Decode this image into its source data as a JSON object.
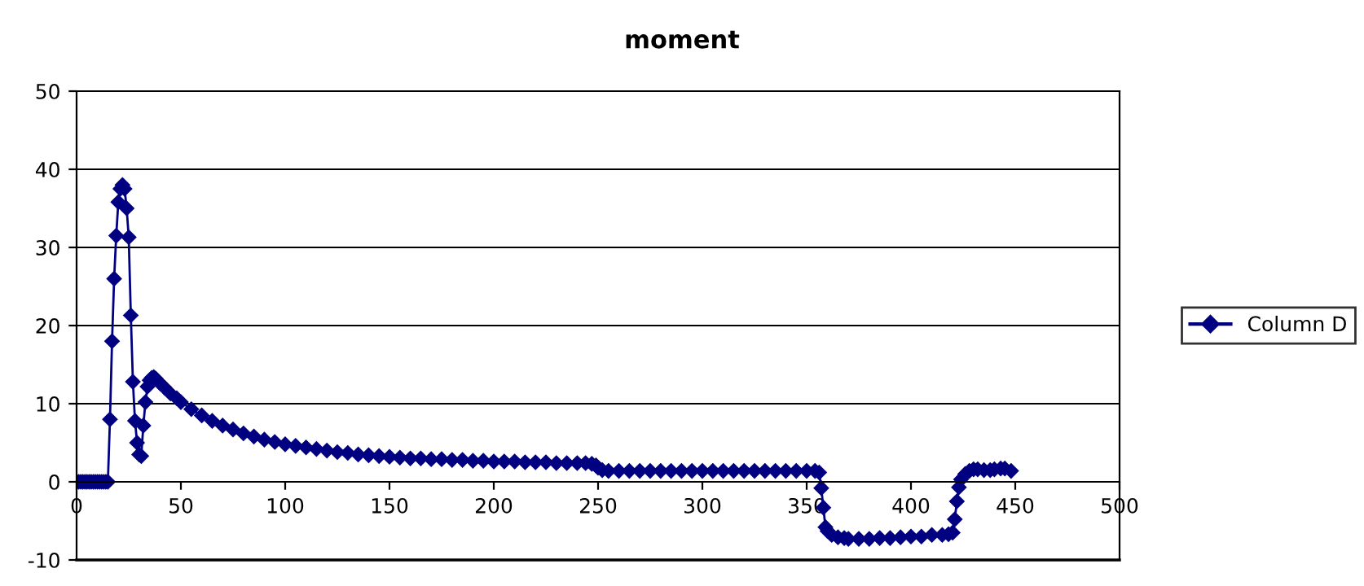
{
  "chart_data": {
    "type": "line",
    "title": "moment",
    "series": [
      {
        "name": "Column D",
        "color": "#000080",
        "x": [
          0,
          1,
          2,
          3,
          4,
          5,
          6,
          7,
          8,
          9,
          10,
          11,
          12,
          13,
          14,
          15,
          16,
          17,
          18,
          19,
          20,
          21,
          22,
          23,
          24,
          25,
          26,
          27,
          28,
          29,
          30,
          31,
          32,
          33,
          34,
          35,
          36,
          37,
          38,
          40,
          42,
          45,
          48,
          50,
          55,
          60,
          65,
          70,
          75,
          80,
          85,
          90,
          95,
          100,
          105,
          110,
          115,
          120,
          125,
          130,
          135,
          140,
          145,
          150,
          155,
          160,
          165,
          170,
          175,
          180,
          185,
          190,
          195,
          200,
          205,
          210,
          215,
          220,
          225,
          230,
          235,
          240,
          244,
          247,
          249,
          250,
          252,
          255,
          260,
          265,
          270,
          275,
          280,
          285,
          290,
          295,
          300,
          305,
          310,
          315,
          320,
          325,
          330,
          335,
          340,
          345,
          350,
          354,
          356,
          357,
          358,
          359,
          360,
          362,
          365,
          368,
          370,
          375,
          380,
          385,
          390,
          395,
          400,
          405,
          410,
          415,
          418,
          420,
          421,
          422,
          423,
          424,
          426,
          428,
          430,
          432,
          435,
          438,
          440,
          443,
          445,
          448
        ],
        "values": [
          0,
          0,
          0,
          0,
          0,
          0,
          0,
          0,
          0,
          0,
          0,
          0,
          0,
          0,
          0,
          0,
          8,
          18,
          26,
          31.5,
          35.8,
          37.5,
          38,
          37.5,
          35,
          31.3,
          21.3,
          12.8,
          7.8,
          5,
          3.5,
          3.3,
          7.2,
          10.2,
          12.2,
          13,
          13.3,
          13.4,
          13.2,
          12.6,
          12.1,
          11.3,
          10.7,
          10.2,
          9.3,
          8.5,
          7.8,
          7.2,
          6.7,
          6.2,
          5.8,
          5.4,
          5.1,
          4.8,
          4.6,
          4.4,
          4.2,
          4,
          3.8,
          3.7,
          3.5,
          3.4,
          3.3,
          3.2,
          3.1,
          3,
          3,
          2.9,
          2.9,
          2.8,
          2.8,
          2.7,
          2.7,
          2.6,
          2.6,
          2.6,
          2.5,
          2.5,
          2.5,
          2.4,
          2.4,
          2.4,
          2.4,
          2.3,
          2.1,
          1.8,
          1.5,
          1.4,
          1.4,
          1.4,
          1.4,
          1.4,
          1.4,
          1.4,
          1.4,
          1.4,
          1.4,
          1.4,
          1.4,
          1.4,
          1.4,
          1.4,
          1.4,
          1.4,
          1.4,
          1.4,
          1.4,
          1.4,
          1.2,
          -0.8,
          -3.3,
          -5.8,
          -6.3,
          -6.8,
          -7.1,
          -7.2,
          -7.3,
          -7.3,
          -7.3,
          -7.2,
          -7.2,
          -7.1,
          -7,
          -7,
          -6.8,
          -6.8,
          -6.7,
          -6.5,
          -4.8,
          -2.5,
          -0.7,
          0.3,
          1,
          1.4,
          1.6,
          1.6,
          1.5,
          1.5,
          1.6,
          1.7,
          1.7,
          1.4
        ]
      }
    ],
    "xlim": [
      0,
      500
    ],
    "xticks": [
      0,
      50,
      100,
      150,
      200,
      250,
      300,
      350,
      400,
      450,
      500
    ],
    "ylim": [
      -10,
      50
    ],
    "yticks": [
      -10,
      0,
      10,
      20,
      30,
      40,
      50
    ],
    "grid": "y",
    "legend": "right",
    "marker": "diamond",
    "line_style": "solid"
  }
}
